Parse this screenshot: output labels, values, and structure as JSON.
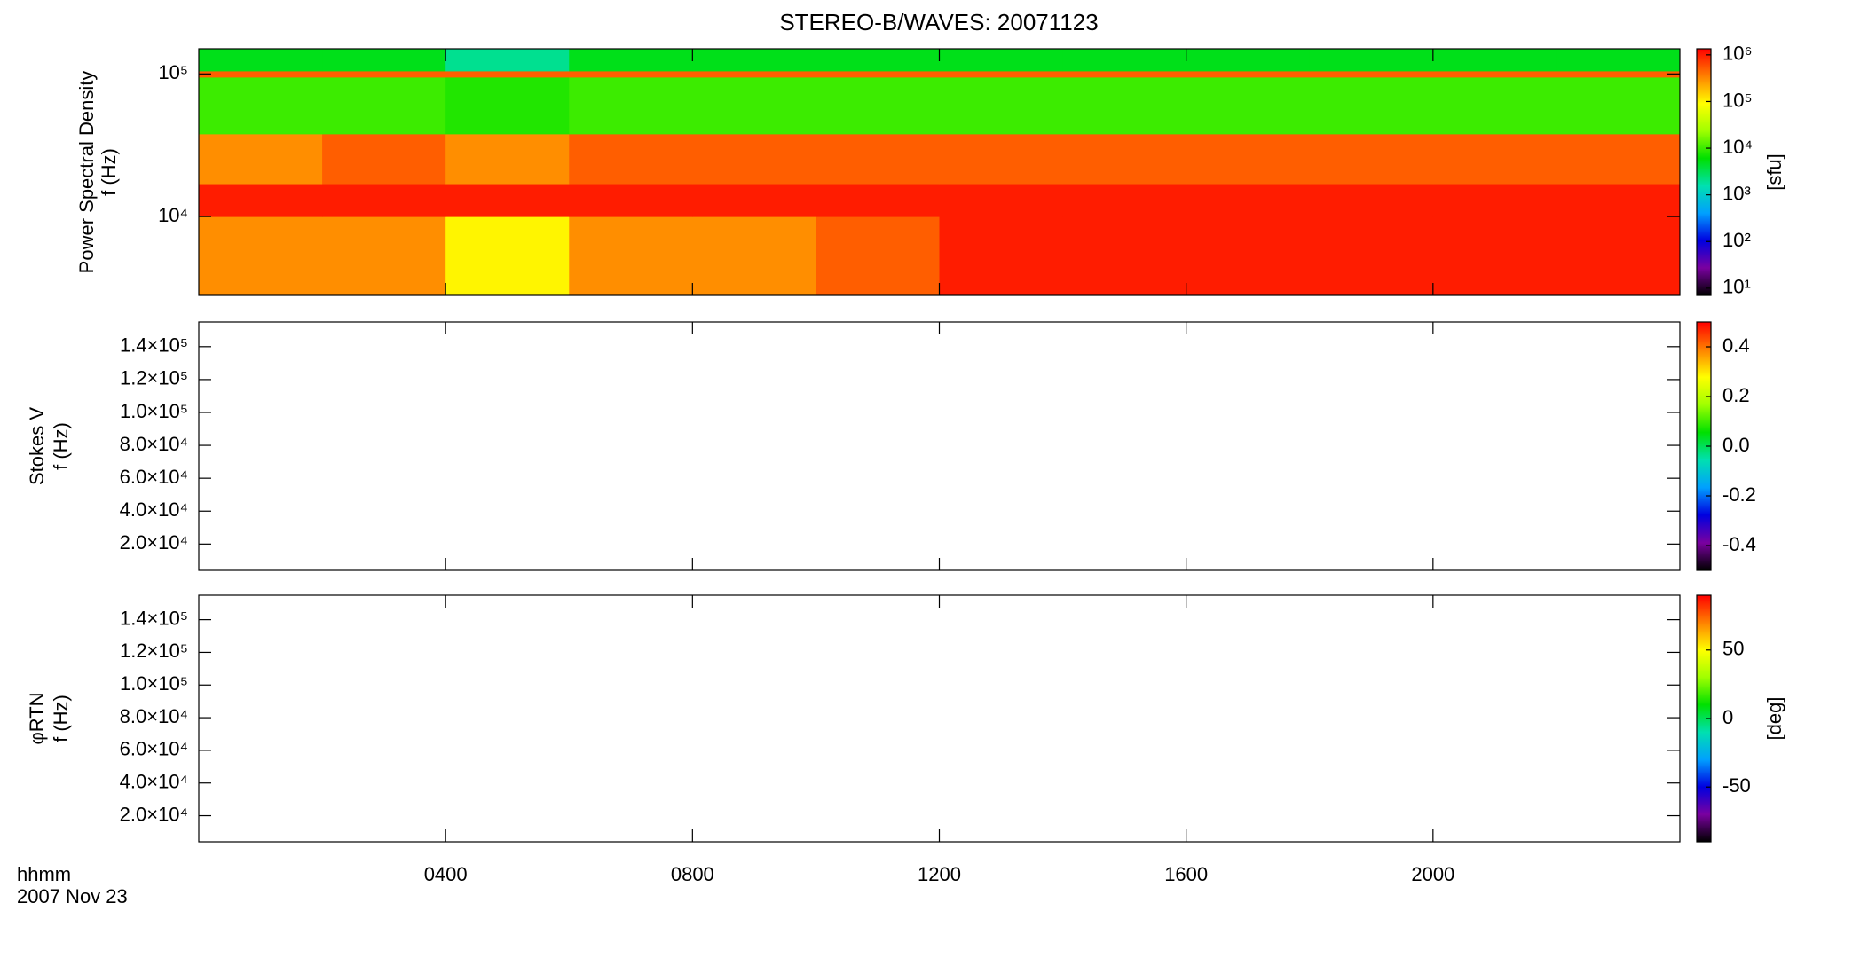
{
  "chart_data": [
    {
      "type": "heatmap",
      "title": "STEREO-B/WAVES: 20071123",
      "ylabel": [
        "Power Spectral Density",
        "f (Hz)"
      ],
      "ylog": true,
      "ylim": [
        2800,
        150000
      ],
      "yticks": [
        {
          "value": 10000,
          "label": "10⁴"
        },
        {
          "value": 100000,
          "label": "10⁵"
        }
      ],
      "x_edges": [
        0,
        2,
        4,
        6,
        8,
        10,
        12,
        14,
        16,
        18,
        20,
        22,
        24
      ],
      "y_edges": [
        2800,
        10000,
        17000,
        38000,
        95000,
        105000,
        150000
      ],
      "z": [
        [
          300000,
          300000,
          100000,
          300000,
          300000,
          500000,
          1000000,
          1000000,
          1000000,
          1000000,
          1000000,
          1000000
        ],
        [
          1000000,
          1000000,
          1000000,
          1000000,
          1000000,
          1000000,
          1000000,
          1000000,
          1000000,
          1000000,
          1000000,
          1000000
        ],
        [
          300000,
          500000,
          300000,
          500000,
          500000,
          500000,
          500000,
          500000,
          500000,
          500000,
          500000,
          500000
        ],
        [
          10000,
          10000,
          8000,
          10000,
          10000,
          10000,
          10000,
          10000,
          10000,
          10000,
          10000,
          10000
        ],
        [
          500000,
          500000,
          500000,
          500000,
          500000,
          500000,
          500000,
          500000,
          500000,
          500000,
          500000,
          500000
        ],
        [
          5000,
          5000,
          2000,
          5000,
          5000,
          5000,
          5000,
          5000,
          5000,
          5000,
          5000,
          5000
        ]
      ],
      "clog": true,
      "clim": [
        7,
        1350000
      ],
      "clabel": "[sfu]",
      "cticks": [
        {
          "value": 10,
          "label": "10¹"
        },
        {
          "value": 100,
          "label": "10²"
        },
        {
          "value": 1000,
          "label": "10³"
        },
        {
          "value": 10000,
          "label": "10⁴"
        },
        {
          "value": 100000,
          "label": "10⁵"
        },
        {
          "value": 1000000,
          "label": "10⁶"
        }
      ],
      "colormap": [
        "#000000",
        "#7a00a0",
        "#0000e0",
        "#00a0ff",
        "#00e0b0",
        "#00e000",
        "#a0ff00",
        "#ffff00",
        "#ff8000",
        "#ff0000"
      ]
    },
    {
      "type": "heatmap",
      "ylabel": [
        "Stokes V",
        "f (Hz)"
      ],
      "ylim": [
        4000,
        155000
      ],
      "yticks": [
        {
          "value": 20000,
          "label": "2.0×10⁴"
        },
        {
          "value": 40000,
          "label": "4.0×10⁴"
        },
        {
          "value": 60000,
          "label": "6.0×10⁴"
        },
        {
          "value": 80000,
          "label": "8.0×10⁴"
        },
        {
          "value": 100000,
          "label": "1.0×10⁵"
        },
        {
          "value": 120000,
          "label": "1.2×10⁵"
        },
        {
          "value": 140000,
          "label": "1.4×10⁵"
        }
      ],
      "clim": [
        -0.5,
        0.5
      ],
      "cticks": [
        -0.4,
        -0.2,
        {
          "value": 0,
          "label": "0.0"
        },
        0.2,
        0.4
      ],
      "colormap": [
        "#000000",
        "#7a00a0",
        "#0000e0",
        "#00a0ff",
        "#00e0b0",
        "#00e000",
        "#a0ff00",
        "#ffff00",
        "#ff8000",
        "#ff0000"
      ]
    },
    {
      "type": "heatmap",
      "ylabel": [
        "φRTN",
        "f (Hz)"
      ],
      "ylim": [
        4000,
        155000
      ],
      "yticks": [
        {
          "value": 20000,
          "label": "2.0×10⁴"
        },
        {
          "value": 40000,
          "label": "4.0×10⁴"
        },
        {
          "value": 60000,
          "label": "6.0×10⁴"
        },
        {
          "value": 80000,
          "label": "8.0×10⁴"
        },
        {
          "value": 100000,
          "label": "1.0×10⁵"
        },
        {
          "value": 120000,
          "label": "1.2×10⁵"
        },
        {
          "value": 140000,
          "label": "1.4×10⁵"
        }
      ],
      "clim": [
        -90,
        90
      ],
      "clabel": "[deg]",
      "cticks": [
        -50,
        0,
        50
      ],
      "colormap": [
        "#000000",
        "#7a00a0",
        "#0000e0",
        "#00a0ff",
        "#00e0b0",
        "#00e000",
        "#a0ff00",
        "#ffff00",
        "#ff8000",
        "#ff0000"
      ],
      "xlabel": "hhmm",
      "date": "2007 Nov 23",
      "xlim": [
        0,
        24
      ],
      "xticks": [
        {
          "value": 4,
          "label": "0400"
        },
        {
          "value": 8,
          "label": "0800"
        },
        {
          "value": 12,
          "label": "1200"
        },
        {
          "value": 16,
          "label": "1600"
        },
        {
          "value": 20,
          "label": "2000"
        }
      ]
    }
  ]
}
